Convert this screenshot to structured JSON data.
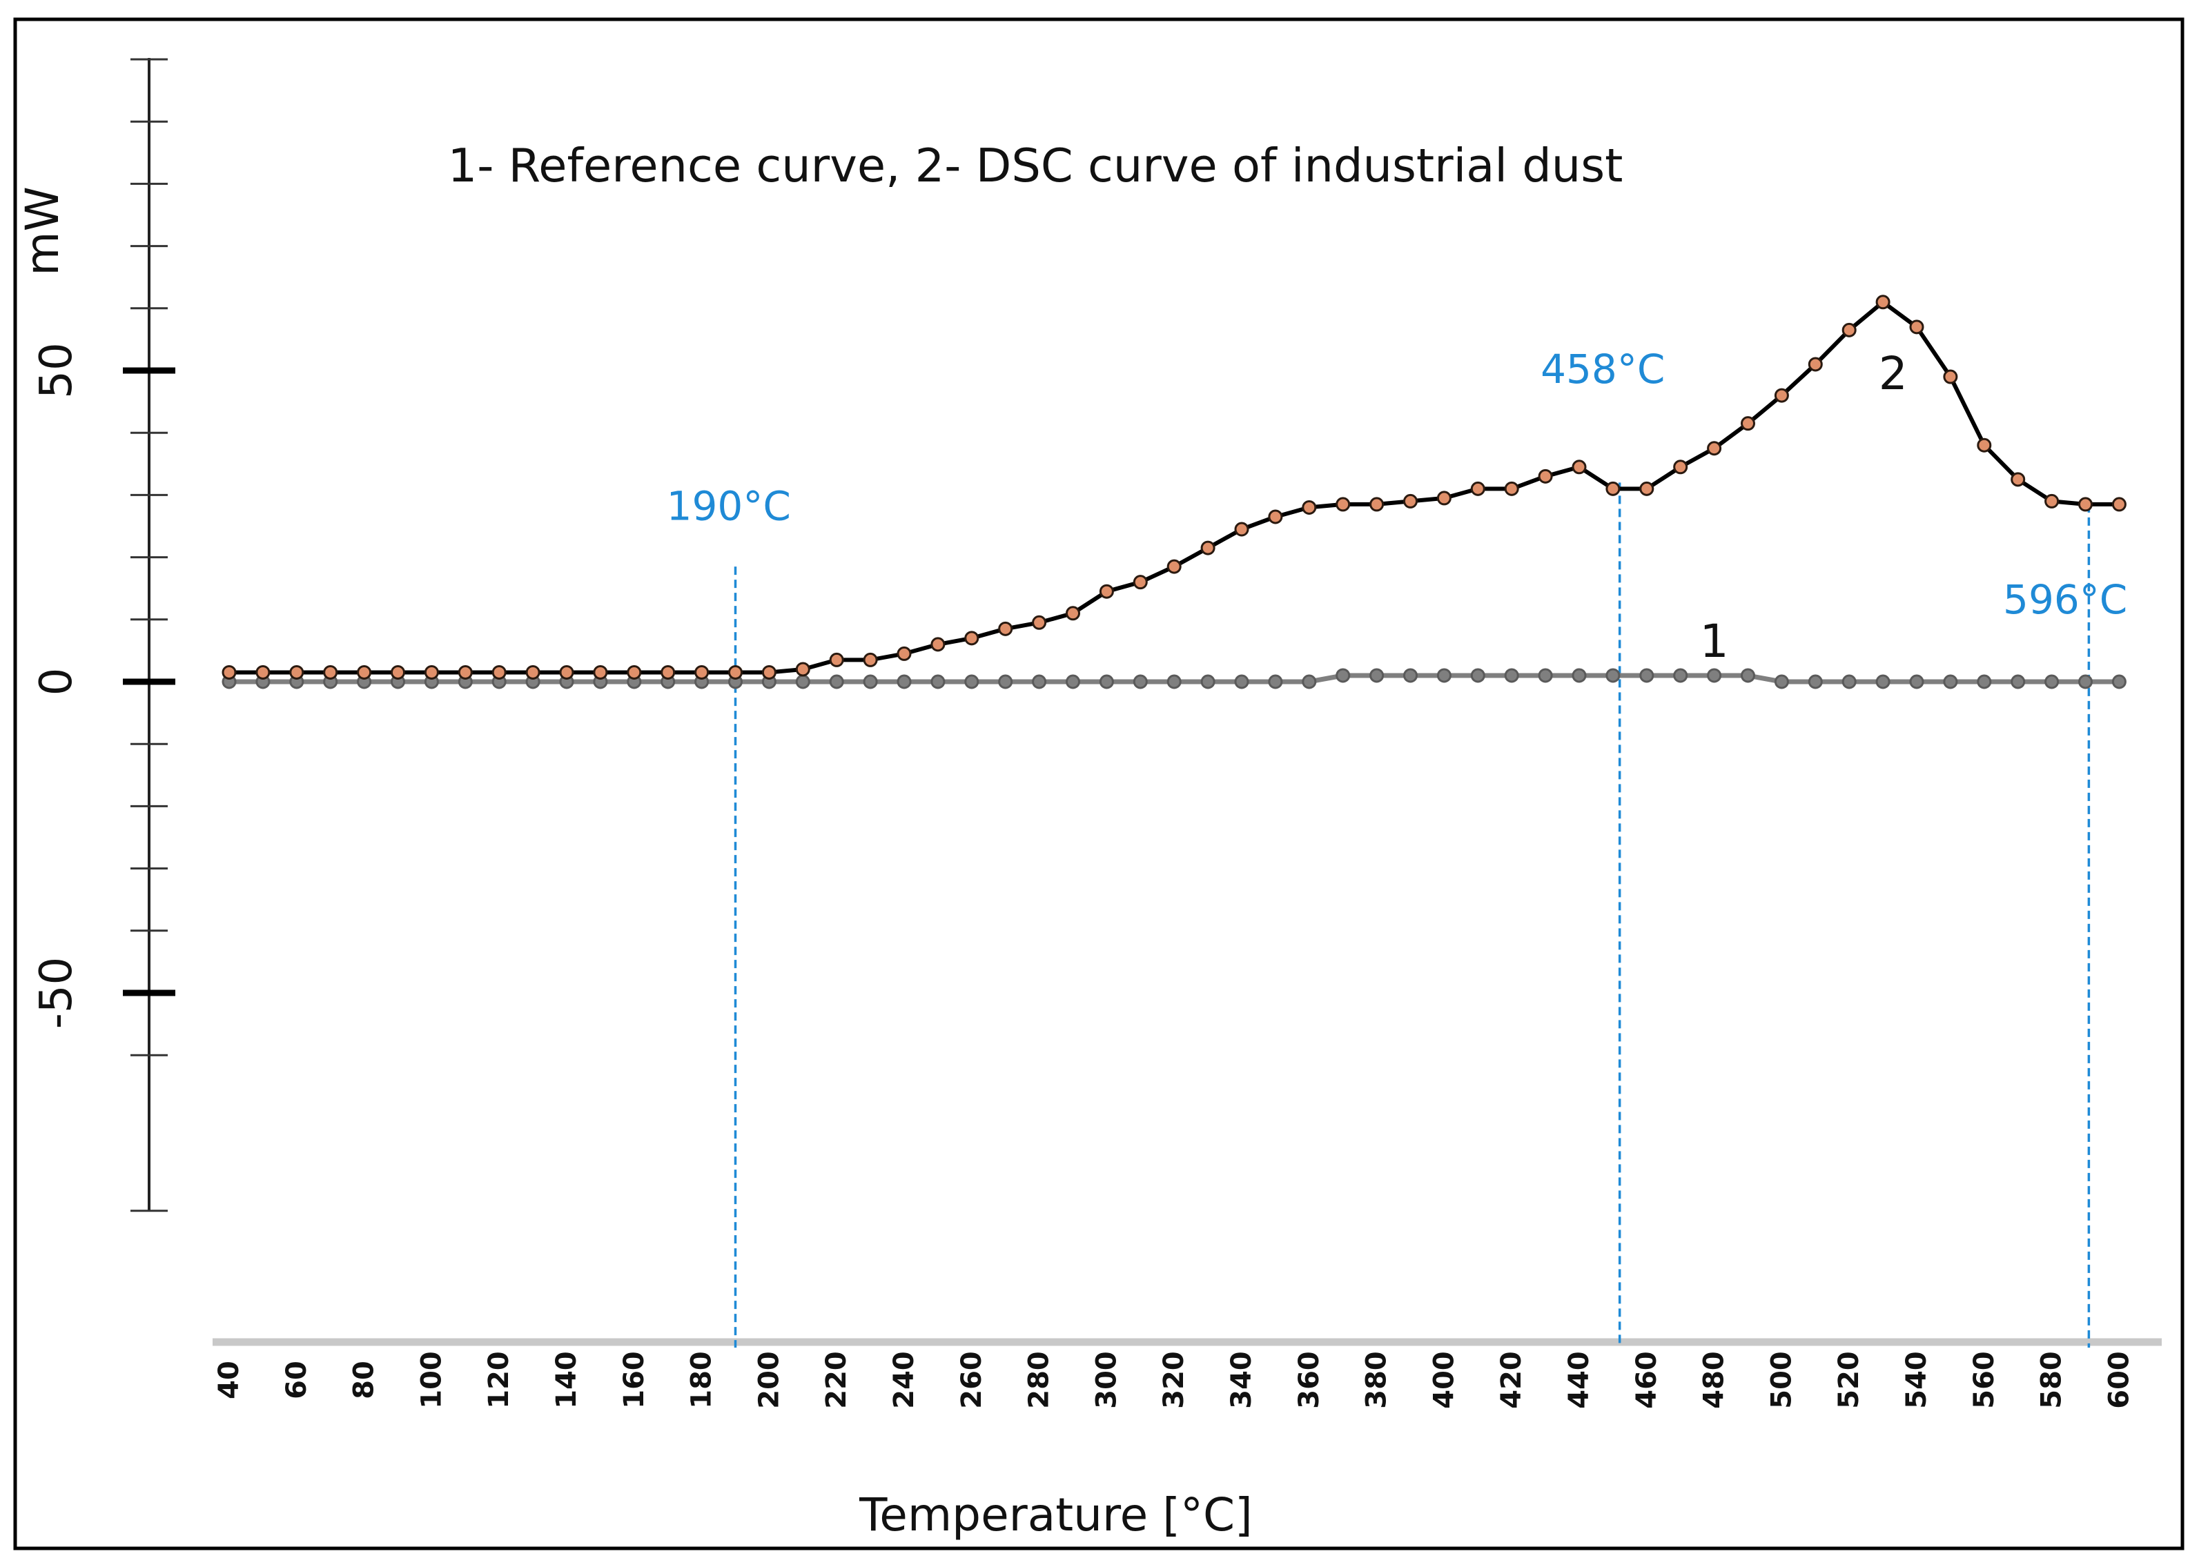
{
  "chart_data": {
    "type": "line",
    "title": "1- Reference curve, 2- DSC curve of industrial dust",
    "xlabel": "Temperature [°C]",
    "ylabel": "mW",
    "xlim": [
      40,
      600
    ],
    "ylim": [
      -85,
      100
    ],
    "x_ticks": [
      40,
      60,
      80,
      100,
      120,
      140,
      160,
      180,
      200,
      220,
      240,
      260,
      280,
      300,
      320,
      340,
      360,
      380,
      400,
      420,
      440,
      460,
      480,
      500,
      520,
      540,
      560,
      580,
      600
    ],
    "y_tick_labels": [
      {
        "value": 50,
        "label": "50"
      },
      {
        "value": 0,
        "label": "0"
      },
      {
        "value": -50,
        "label": "-50"
      }
    ],
    "y_major_ticks": [
      50,
      0,
      -50
    ],
    "y_minor_ticks": [
      100,
      90,
      80,
      70,
      60,
      40,
      30,
      20,
      10,
      -10,
      -20,
      -30,
      -40,
      -60,
      -85
    ],
    "x": [
      40,
      50,
      60,
      70,
      80,
      90,
      100,
      110,
      120,
      130,
      140,
      150,
      160,
      170,
      180,
      190,
      200,
      210,
      220,
      230,
      240,
      250,
      260,
      270,
      280,
      290,
      300,
      310,
      320,
      330,
      340,
      350,
      360,
      370,
      380,
      390,
      400,
      410,
      420,
      430,
      440,
      450,
      460,
      470,
      480,
      490,
      500,
      510,
      520,
      530,
      540,
      550,
      560,
      570,
      580,
      590,
      600
    ],
    "series": [
      {
        "name": "1",
        "label": "1",
        "label_at": [
          480,
          4
        ],
        "line_color": "#7f7f7f",
        "marker_color": "#7f7f7f",
        "values": [
          0,
          0,
          0,
          0,
          0,
          0,
          0,
          0,
          0,
          0,
          0,
          0,
          0,
          0,
          0,
          0,
          0,
          0,
          0,
          0,
          0,
          0,
          0,
          0,
          0,
          0,
          0,
          0,
          0,
          0,
          0,
          0,
          0,
          1,
          1,
          1,
          1,
          1,
          1,
          1,
          1,
          1,
          1,
          1,
          1,
          1,
          0,
          0,
          0,
          0,
          0,
          0,
          0,
          0,
          0,
          0,
          0
        ]
      },
      {
        "name": "2",
        "label": "2",
        "label_at": [
          533,
          47
        ],
        "line_color": "#000000",
        "marker_color": "#e0906a",
        "values": [
          1.5,
          1.5,
          1.5,
          1.5,
          1.5,
          1.5,
          1.5,
          1.5,
          1.5,
          1.5,
          1.5,
          1.5,
          1.5,
          1.5,
          1.5,
          1.5,
          1.5,
          2,
          3.5,
          3.5,
          4.5,
          6,
          7,
          8.5,
          9.5,
          11,
          14.5,
          16,
          18.5,
          21.5,
          24.5,
          26.5,
          28,
          28.5,
          28.5,
          29,
          29.5,
          31,
          31,
          33,
          34.5,
          31,
          31,
          34.5,
          37.5,
          41.5,
          46,
          51,
          56.5,
          61,
          57,
          49,
          38,
          32.5,
          29,
          28.5,
          28.5
        ]
      }
    ],
    "annotations": [
      {
        "label": "190°C",
        "x": 190,
        "y_from": 18.5,
        "y_to": -107,
        "text_at": [
          188,
          26
        ],
        "color": "#1f8ad6"
      },
      {
        "label": "458°C",
        "x": 452,
        "y_from": 32,
        "y_to": -107,
        "text_at": [
          447,
          48
        ],
        "color": "#1f8ad6"
      },
      {
        "label": "596°C",
        "x": 591,
        "y_from": 28.5,
        "y_to": -107,
        "text_at": [
          584,
          11
        ],
        "color": "#1f8ad6"
      }
    ]
  }
}
